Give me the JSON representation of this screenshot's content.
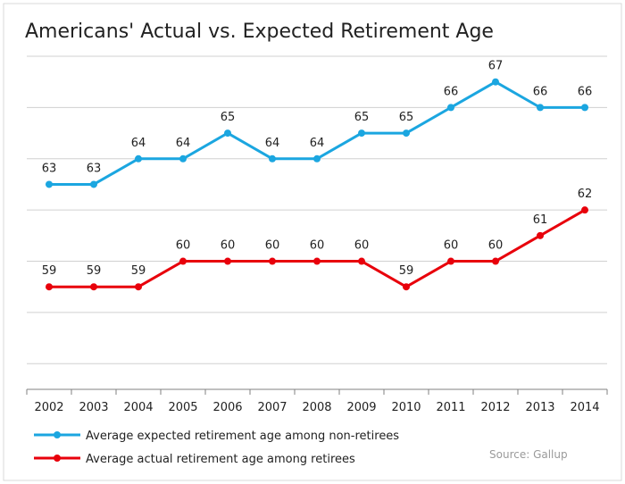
{
  "chart_data": {
    "type": "line",
    "title": "Americans' Actual vs. Expected Retirement Age",
    "categories": [
      "2002",
      "2003",
      "2004",
      "2005",
      "2006",
      "2007",
      "2008",
      "2009",
      "2010",
      "2011",
      "2012",
      "2013",
      "2014"
    ],
    "series": [
      {
        "name": "Average expected retirement age among non-retirees",
        "color": "#1ba6e0",
        "values": [
          63,
          63,
          64,
          64,
          65,
          64,
          64,
          65,
          65,
          66,
          67,
          66,
          66
        ]
      },
      {
        "name": "Average actual retirement age among retirees",
        "color": "#e8000b",
        "values": [
          59,
          59,
          59,
          60,
          60,
          60,
          60,
          60,
          59,
          60,
          60,
          61,
          62
        ]
      }
    ],
    "ylim": [
      55,
      68
    ],
    "grid": true,
    "legend_position": "bottom-left",
    "source": "Source: Gallup"
  }
}
